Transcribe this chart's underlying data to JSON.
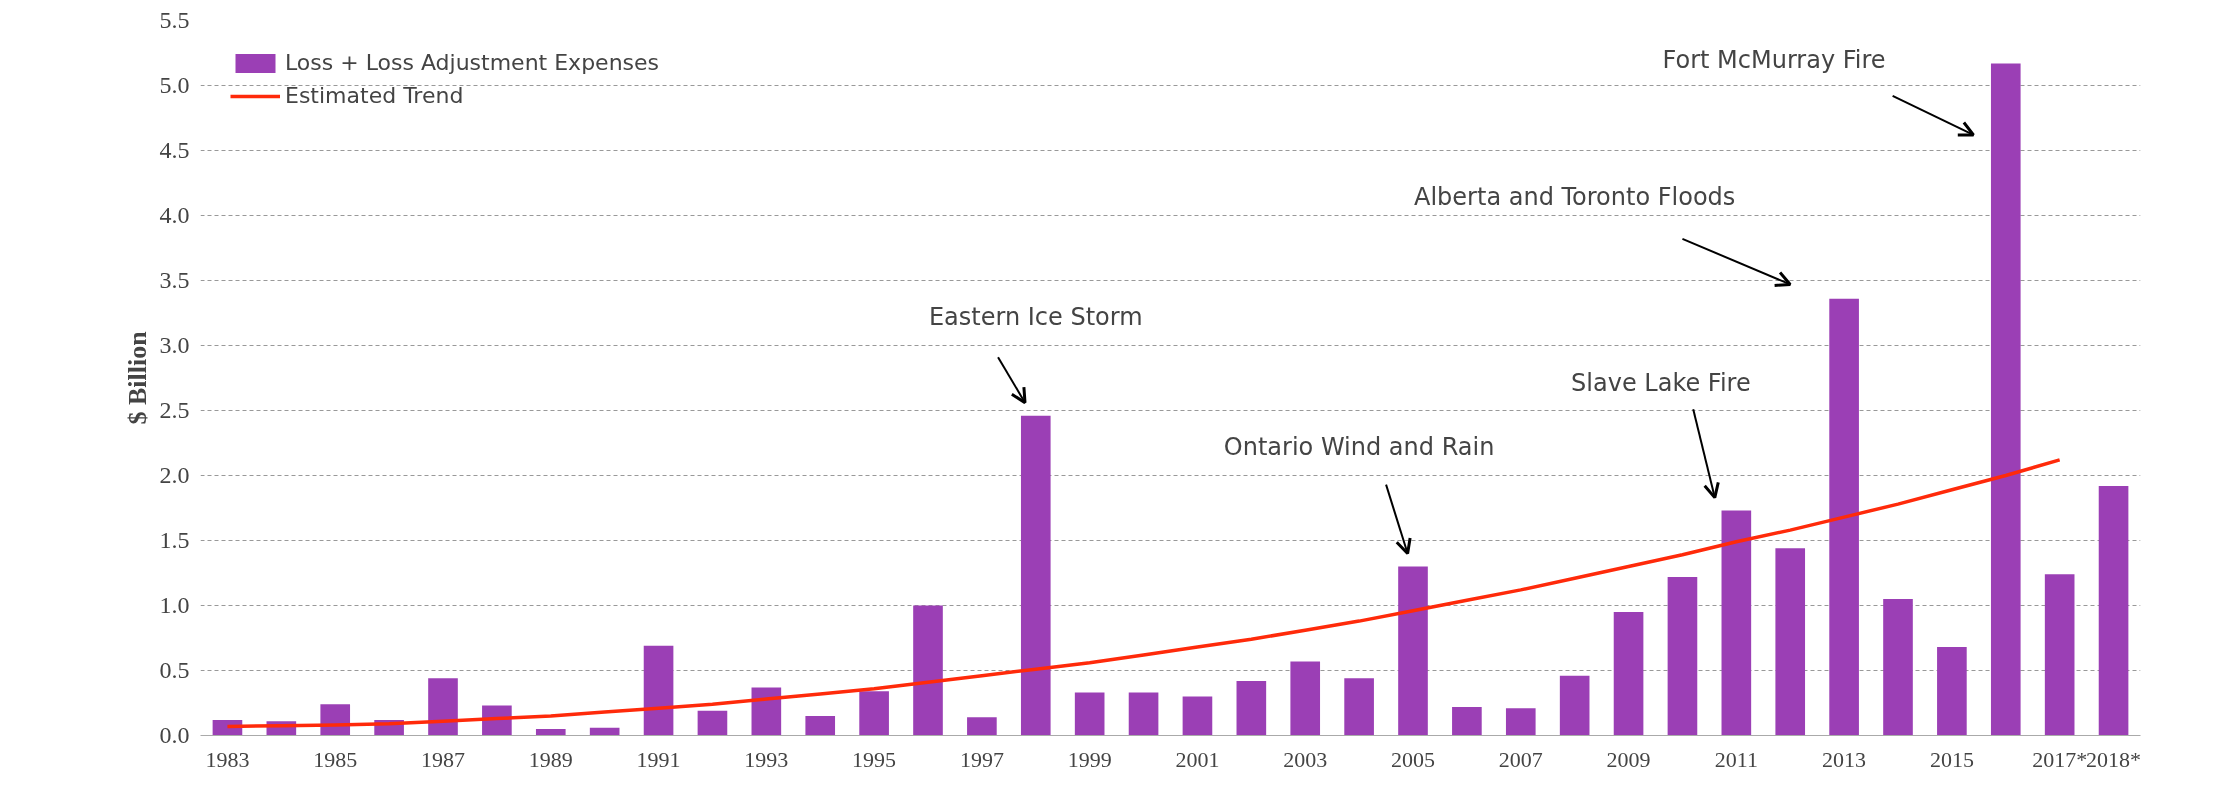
{
  "chart_data": {
    "type": "bar",
    "ylabel": "$ Billion",
    "categories": [
      "1983",
      null,
      "1985",
      null,
      "1987",
      null,
      "1989",
      null,
      "1991",
      null,
      "1993",
      null,
      "1995",
      null,
      "1997",
      null,
      "1999",
      null,
      "2001",
      null,
      "2003",
      null,
      "2005",
      null,
      "2007",
      null,
      "2009",
      null,
      "2011",
      null,
      "2013",
      null,
      "2015",
      null,
      "2017*",
      "2018*"
    ],
    "series": [
      {
        "name": "Loss + Loss Adjustment Expenses",
        "color": "#9b3fb5",
        "values": [
          0.12,
          0.11,
          0.24,
          0.12,
          0.44,
          0.23,
          0.05,
          0.06,
          0.69,
          0.19,
          0.37,
          0.15,
          0.34,
          1.0,
          0.14,
          2.46,
          0.33,
          0.33,
          0.3,
          0.42,
          0.57,
          0.44,
          1.3,
          0.22,
          0.21,
          0.46,
          0.95,
          1.22,
          1.73,
          1.44,
          3.36,
          1.05,
          0.68,
          5.17,
          1.24,
          1.92
        ]
      },
      {
        "name": "Estimated Trend",
        "type": "line",
        "color": "#ff2a0a",
        "values": [
          0.07,
          0.075,
          0.08,
          0.09,
          0.11,
          0.13,
          0.15,
          0.18,
          0.21,
          0.24,
          0.28,
          0.32,
          0.36,
          0.41,
          0.46,
          0.51,
          0.56,
          0.62,
          0.68,
          0.74,
          0.81,
          0.88,
          0.96,
          1.04,
          1.12,
          1.21,
          1.3,
          1.39,
          1.49,
          1.58,
          1.68,
          1.78,
          1.89,
          2.0,
          2.12,
          null
        ]
      }
    ],
    "ylim": [
      0,
      5.5
    ],
    "yticks": [
      {
        "value": 0,
        "label": "0.0"
      },
      0.5,
      {
        "value": 1,
        "label": "1.0"
      },
      1.5,
      {
        "value": 2,
        "label": "2.0"
      },
      2.5,
      {
        "value": 3,
        "label": "3.0"
      },
      3.5,
      {
        "value": 4,
        "label": "4.0"
      },
      4.5,
      {
        "value": 5,
        "label": "5.0"
      },
      5.5
    ],
    "grid": "y",
    "legend": "top left",
    "marker": "none",
    "line_style": "solid",
    "annotations": [
      "Eastern Ice Storm",
      "Ontario Wind and Rain",
      "Slave Lake Fire",
      "Alberta and Toronto Floods",
      "Fort McMurray Fire"
    ]
  }
}
